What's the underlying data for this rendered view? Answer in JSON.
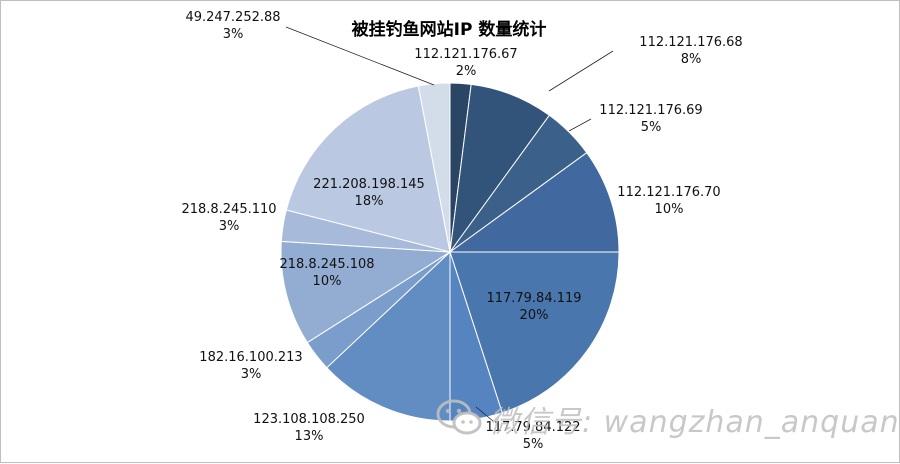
{
  "chart_data": {
    "type": "pie",
    "title": "被挂钓鱼网站IP 数量统计",
    "slices": [
      {
        "label": "112.121.176.67",
        "value": 2,
        "pct_label": "2%",
        "color": "#2b4564"
      },
      {
        "label": "112.121.176.68",
        "value": 8,
        "pct_label": "8%",
        "color": "#33547a"
      },
      {
        "label": "112.121.176.69",
        "value": 5,
        "pct_label": "5%",
        "color": "#3b6089"
      },
      {
        "label": "112.121.176.70",
        "value": 10,
        "pct_label": "10%",
        "color": "#4169a0"
      },
      {
        "label": "117.79.84.119",
        "value": 20,
        "pct_label": "20%",
        "color": "#4a76ae"
      },
      {
        "label": "117.79.84.122",
        "value": 5,
        "pct_label": "5%",
        "color": "#5684c0"
      },
      {
        "label": "123.108.108.250",
        "value": 13,
        "pct_label": "13%",
        "color": "#628dc2"
      },
      {
        "label": "182.16.100.213",
        "value": 3,
        "pct_label": "3%",
        "color": "#7b9dcb"
      },
      {
        "label": "218.8.245.108",
        "value": 10,
        "pct_label": "10%",
        "color": "#93acd2"
      },
      {
        "label": "218.8.245.110",
        "value": 3,
        "pct_label": "3%",
        "color": "#a7bad9"
      },
      {
        "label": "221.208.198.145",
        "value": 18,
        "pct_label": "18%",
        "color": "#bac9e1"
      },
      {
        "label": "49.247.252.88",
        "value": 3,
        "pct_label": "3%",
        "color": "#d3dce9"
      }
    ]
  },
  "watermark": {
    "text": "微信号: wangzhan_anquan"
  }
}
